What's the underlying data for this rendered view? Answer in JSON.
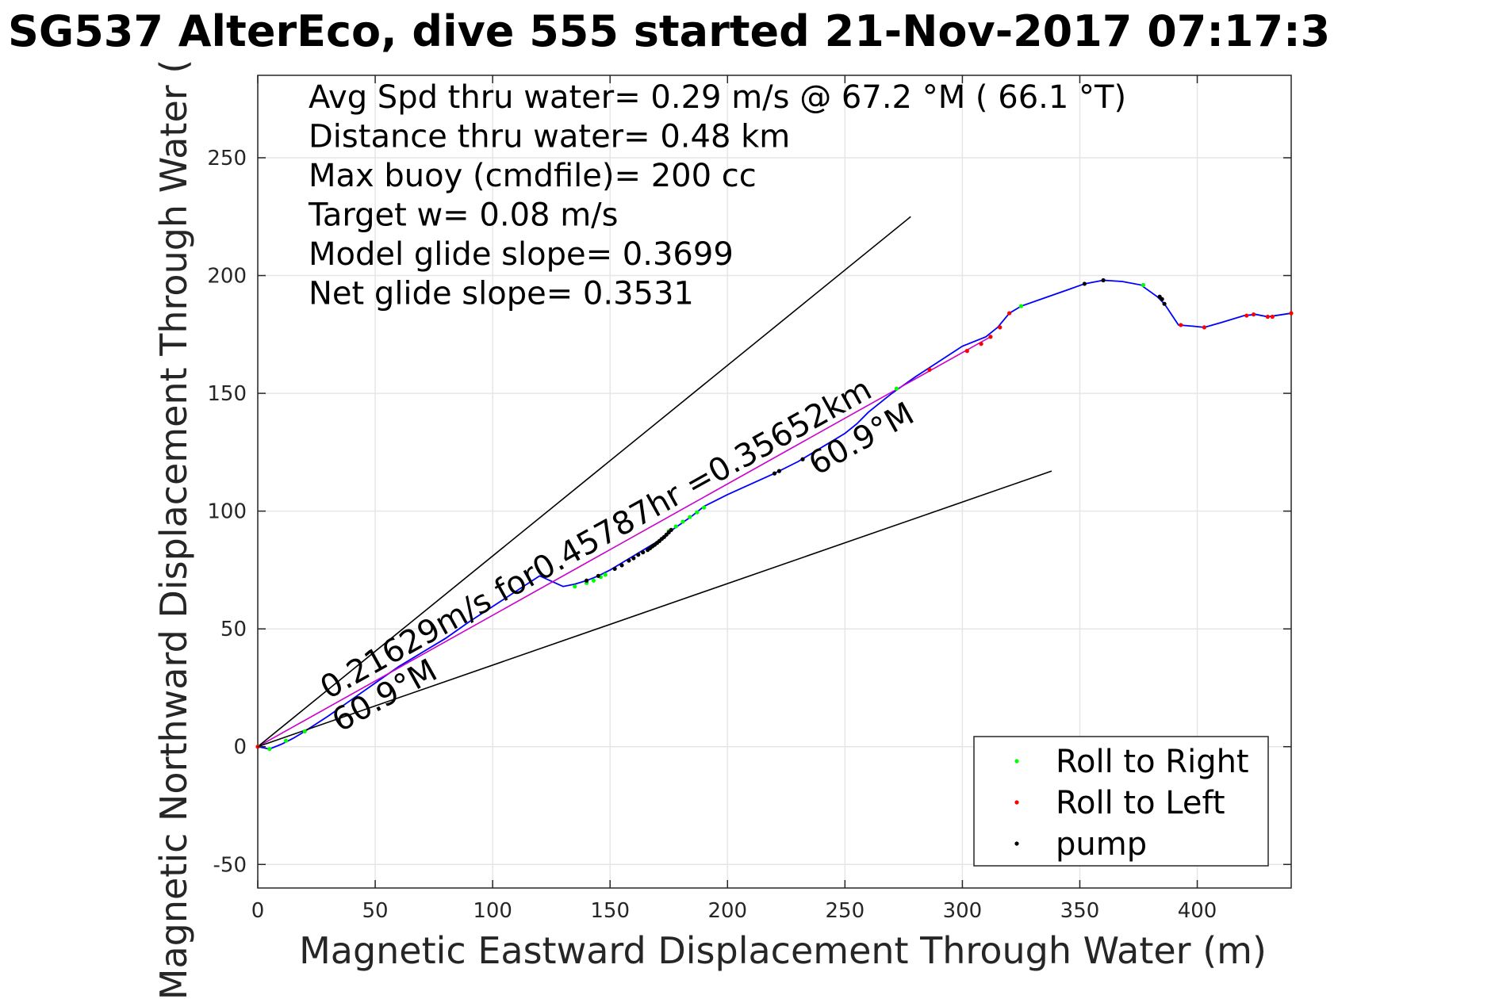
{
  "chart_data": {
    "type": "line",
    "title": "SG537 AlterEco, dive 555 started 21-Nov-2017 07:17:3",
    "xlabel": "Magnetic Eastward Displacement Through Water (m)",
    "ylabel": "Magnetic Northward Displacement Through Water (",
    "xlim": [
      0,
      440
    ],
    "ylim": [
      -60,
      285
    ],
    "xticks": [
      0,
      50,
      100,
      150,
      200,
      250,
      300,
      350,
      400
    ],
    "yticks": [
      -50,
      0,
      50,
      100,
      150,
      200,
      250
    ],
    "grid": true,
    "legend_position": "bottom-right",
    "info_lines": [
      "Avg Spd thru water=  0.29 m/s @  67.2 °M ( 66.1 °T)",
      "Distance thru water=  0.48 km",
      "Max buoy (cmdfile)= 200 cc",
      "Target w= 0.08 m/s",
      "Model glide slope= 0.3699",
      "Net glide slope= 0.3531"
    ],
    "annotations": [
      {
        "text": "0.21629m/s for0.45787hr =0.35652km",
        "x": 30,
        "y": 20,
        "angle_deg": 60.9,
        "color": "#000000"
      },
      {
        "text": "60.9°M",
        "x": 35,
        "y": 6,
        "angle_deg": 60.9,
        "color": "#000000"
      },
      {
        "text": "60.9°M",
        "x": 238,
        "y": 115,
        "angle_deg": 60.9,
        "color": "#000000"
      }
    ],
    "series": [
      {
        "name": "track",
        "color": "#0000ff",
        "x": [
          0,
          5,
          10,
          15,
          20,
          30,
          40,
          50,
          60,
          70,
          80,
          90,
          100,
          110,
          120,
          130,
          135,
          140,
          145,
          150,
          155,
          160,
          165,
          170,
          175,
          180,
          185,
          190,
          200,
          210,
          220,
          230,
          240,
          250,
          255,
          260,
          265,
          270,
          280,
          290,
          300,
          310,
          315,
          320,
          325,
          335,
          345,
          352,
          360,
          368,
          376,
          383,
          386,
          392,
          398,
          403,
          410,
          420,
          425,
          430,
          440
        ],
        "y": [
          0,
          -1,
          1,
          3.5,
          6.5,
          13,
          20,
          27,
          34,
          40,
          46,
          53,
          59.5,
          66,
          72.5,
          68,
          69,
          70.5,
          72.5,
          75,
          78,
          81,
          84,
          87,
          91,
          94.5,
          98,
          102,
          107,
          111.5,
          116,
          121,
          127,
          133,
          137,
          142,
          146,
          150,
          157,
          163.5,
          170,
          174,
          178,
          184,
          187,
          190.5,
          194,
          196.5,
          198,
          197.5,
          196,
          191,
          188,
          179,
          178.5,
          178,
          180,
          183,
          183.5,
          182.5,
          184
        ]
      },
      {
        "name": "average",
        "color": "#cc00cc",
        "x": [
          0,
          312
        ],
        "y": [
          0,
          174
        ]
      },
      {
        "name": "glide cone upper",
        "color": "#000000",
        "x": [
          0,
          278
        ],
        "y": [
          0,
          225
        ]
      },
      {
        "name": "glide cone lower",
        "color": "#000000",
        "x": [
          0,
          338
        ],
        "y": [
          0,
          117
        ]
      },
      {
        "name": "Roll to Right",
        "color": "#00ff00",
        "marker": "dot",
        "x": [
          5,
          12,
          20,
          135,
          140,
          143,
          146,
          148,
          175,
          178,
          181,
          184,
          187,
          190,
          272,
          325,
          377
        ],
        "y": [
          -1,
          2.5,
          6.5,
          68,
          69.5,
          70.5,
          72,
          73,
          91.5,
          93.5,
          95.5,
          97.5,
          99.5,
          101.5,
          152,
          187,
          196
        ]
      },
      {
        "name": "Roll to Left",
        "color": "#ff0000",
        "marker": "dot",
        "x": [
          0,
          286,
          302,
          308,
          312,
          316,
          320,
          393,
          403,
          421,
          424,
          430,
          432,
          440
        ],
        "y": [
          0,
          160,
          168,
          171,
          174,
          178,
          184,
          179,
          178,
          183,
          183.5,
          182.5,
          182.5,
          184
        ]
      },
      {
        "name": "pump",
        "color": "#000000",
        "marker": "dot",
        "x": [
          140,
          145,
          152,
          155,
          158,
          160,
          162,
          164,
          166,
          167,
          168,
          169,
          170,
          171,
          172,
          173,
          174,
          175,
          176,
          220,
          222,
          232,
          352,
          360,
          384,
          385,
          386
        ],
        "y": [
          70.5,
          72.5,
          75.5,
          77,
          79,
          80,
          81.5,
          82.5,
          83.5,
          84.2,
          85,
          85.7,
          86.5,
          87.3,
          88.2,
          89,
          90,
          91,
          92,
          116,
          117,
          122,
          196.5,
          198,
          191,
          190,
          188
        ]
      }
    ],
    "legend": [
      {
        "label": "Roll to Right",
        "color": "#00ff00"
      },
      {
        "label": "Roll to Left",
        "color": "#ff0000"
      },
      {
        "label": "pump",
        "color": "#000000"
      }
    ]
  }
}
